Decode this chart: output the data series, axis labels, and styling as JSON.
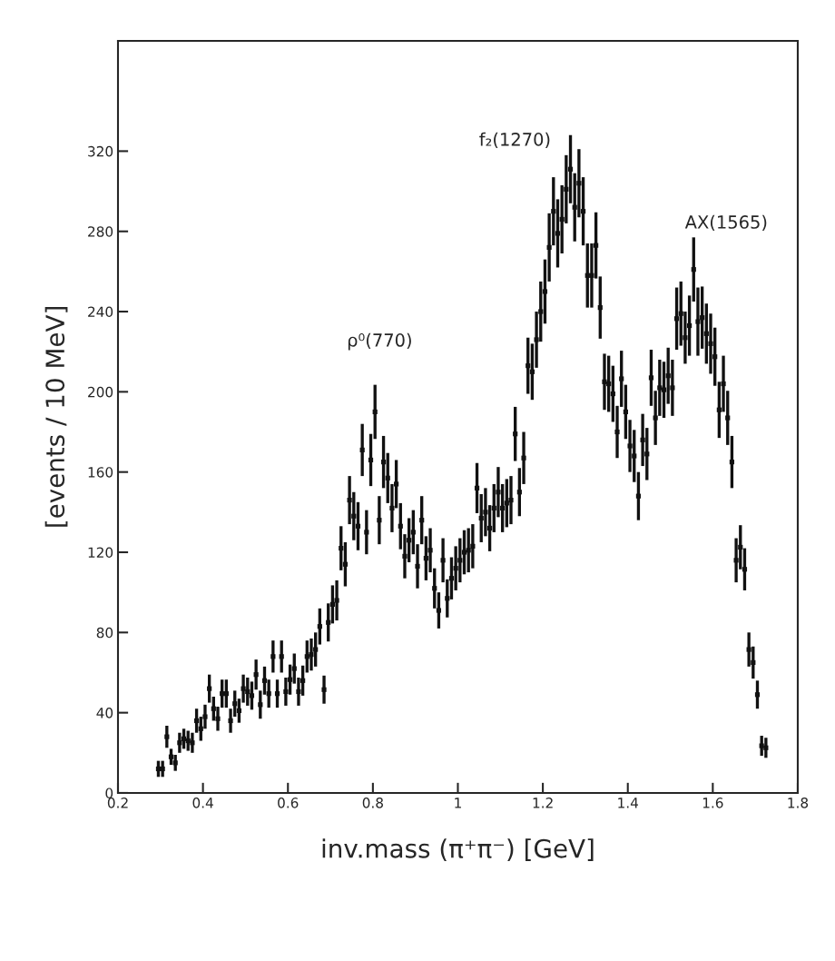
{
  "chart_data": {
    "type": "scatter",
    "marker": "square",
    "color": "#111111",
    "xlabel": "inv.mass (π⁺π⁻) [GeV]",
    "ylabel": "[events / 10 MeV]",
    "xlim": [
      0.2,
      1.8
    ],
    "ylim": [
      0,
      375
    ],
    "xticks": [
      0.2,
      0.4,
      0.6,
      0.8,
      1,
      1.2,
      1.4,
      1.6,
      1.8
    ],
    "yticks": [
      0,
      40,
      80,
      120,
      160,
      200,
      240,
      280,
      320
    ],
    "grid": false,
    "annotations": [
      "ρ⁰(770)",
      "f₂(1270)",
      "AX(1565)"
    ],
    "x": [
      0.295,
      0.305,
      0.315,
      0.325,
      0.335,
      0.345,
      0.355,
      0.365,
      0.375,
      0.385,
      0.395,
      0.405,
      0.415,
      0.425,
      0.435,
      0.445,
      0.455,
      0.465,
      0.475,
      0.485,
      0.495,
      0.505,
      0.515,
      0.525,
      0.535,
      0.545,
      0.555,
      0.565,
      0.575,
      0.585,
      0.595,
      0.605,
      0.615,
      0.625,
      0.635,
      0.645,
      0.655,
      0.665,
      0.675,
      0.685,
      0.695,
      0.705,
      0.715,
      0.725,
      0.735,
      0.745,
      0.755,
      0.765,
      0.775,
      0.785,
      0.795,
      0.805,
      0.815,
      0.825,
      0.835,
      0.845,
      0.855,
      0.865,
      0.875,
      0.885,
      0.895,
      0.905,
      0.915,
      0.925,
      0.935,
      0.945,
      0.955,
      0.965,
      0.975,
      0.985,
      0.995,
      1.005,
      1.015,
      1.025,
      1.035,
      1.045,
      1.055,
      1.065,
      1.075,
      1.085,
      1.095,
      1.105,
      1.115,
      1.125,
      1.135,
      1.145,
      1.155,
      1.165,
      1.175,
      1.185,
      1.195,
      1.205,
      1.215,
      1.225,
      1.235,
      1.245,
      1.255,
      1.265,
      1.275,
      1.285,
      1.295,
      1.305,
      1.315,
      1.325,
      1.335,
      1.345,
      1.355,
      1.365,
      1.375,
      1.385,
      1.395,
      1.405,
      1.415,
      1.425,
      1.435,
      1.445,
      1.455,
      1.465,
      1.475,
      1.485,
      1.495,
      1.505,
      1.515,
      1.525,
      1.535,
      1.545,
      1.555,
      1.565,
      1.575,
      1.585,
      1.595,
      1.605,
      1.615,
      1.625,
      1.635,
      1.645,
      1.655,
      1.665,
      1.675,
      1.685,
      1.695,
      1.705,
      1.715,
      1.725
    ],
    "values": [
      12,
      12,
      28,
      18,
      15,
      25,
      27,
      26,
      25,
      36,
      32,
      38,
      52,
      42,
      37,
      49.5,
      49.5,
      36,
      44.5,
      41,
      52,
      50.5,
      48.5,
      59,
      44,
      56,
      49.5,
      68,
      49.5,
      68,
      50.5,
      56.5,
      62,
      50.5,
      56,
      68,
      69,
      71.5,
      83,
      51.5,
      85,
      94,
      96,
      122,
      114,
      146,
      138,
      133,
      171,
      130,
      166,
      190,
      136,
      165,
      157,
      142,
      154,
      133,
      118,
      126,
      130,
      113,
      136,
      117,
      121,
      102,
      91,
      116,
      97,
      107,
      112,
      116,
      120,
      121,
      123,
      152,
      137,
      140,
      132,
      142,
      150,
      142,
      144.5,
      146,
      179,
      150,
      167,
      213,
      210,
      226,
      240,
      250,
      272,
      290,
      279,
      286,
      301,
      311,
      292,
      304,
      290,
      258,
      258,
      273,
      242,
      205,
      204,
      199,
      180,
      206.5,
      190,
      173,
      168,
      148,
      176,
      169,
      207,
      187,
      202,
      201,
      208,
      202,
      236.5,
      239,
      227,
      233,
      261,
      235,
      237,
      229,
      224,
      217.5,
      191,
      204,
      187,
      165,
      116,
      122.5,
      111.5,
      71.5,
      65,
      49,
      23.5,
      22.5
    ],
    "errors": [
      4,
      4,
      5.5,
      4,
      4,
      5,
      5,
      5,
      5,
      6,
      6,
      6,
      7,
      6,
      6,
      7,
      7,
      6,
      6.5,
      6,
      7,
      7,
      7,
      7.5,
      7,
      7,
      7,
      8,
      7,
      8,
      7,
      7.5,
      7.5,
      7,
      7.5,
      8,
      8,
      8.5,
      9,
      7,
      9.5,
      9.5,
      10,
      11,
      11,
      12,
      12,
      12,
      13,
      11,
      13,
      13.5,
      12,
      13,
      12.5,
      12,
      12,
      11.5,
      11,
      11,
      11,
      11,
      12,
      11,
      11,
      10,
      9,
      11,
      9.5,
      10.5,
      11,
      11,
      11,
      11,
      11,
      12.5,
      12,
      12,
      11.5,
      12,
      12.5,
      12,
      12,
      12,
      13.5,
      12,
      13,
      14,
      14,
      14,
      15,
      16,
      17,
      17,
      17,
      17,
      17,
      17,
      17,
      17,
      17,
      16,
      16,
      16.5,
      15.5,
      14,
      14,
      14,
      13,
      14,
      13.5,
      13,
      13,
      12,
      13,
      13,
      14,
      13.5,
      14,
      14,
      14,
      14,
      15.5,
      16,
      13,
      15,
      16,
      17,
      15.5,
      15,
      15,
      14.5,
      14,
      14,
      13.5,
      13,
      11,
      11,
      10.5,
      8.5,
      8,
      7,
      5,
      5
    ]
  }
}
